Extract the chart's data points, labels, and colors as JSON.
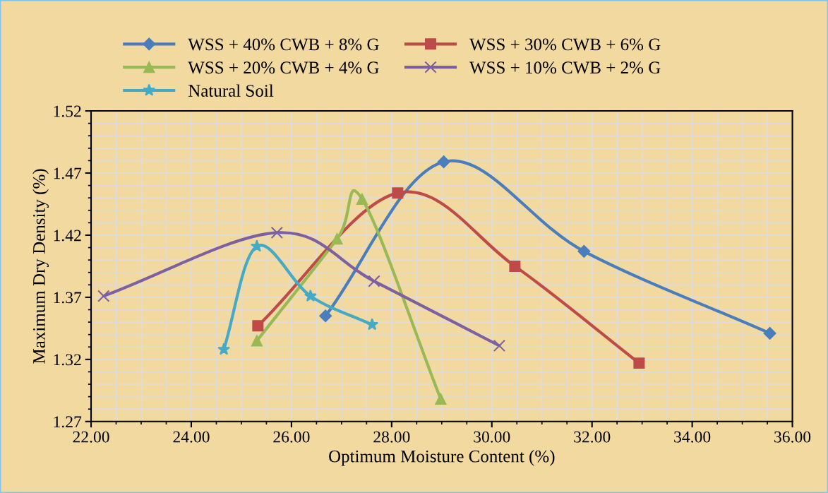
{
  "chart_data": {
    "type": "line",
    "xlabel": "Optimum Moisture Content (%)",
    "ylabel": "Maximum Dry Density (%)",
    "xlim": [
      22,
      36
    ],
    "ylim": [
      1.27,
      1.52
    ],
    "xticks": [
      {
        "value": 22,
        "label": "22.00"
      },
      {
        "value": 24,
        "label": "24.00"
      },
      {
        "value": 26,
        "label": "26.00"
      },
      {
        "value": 28,
        "label": "28.00"
      },
      {
        "value": 30,
        "label": "30.00"
      },
      {
        "value": 32,
        "label": "32.00"
      },
      {
        "value": 34,
        "label": "34.00"
      },
      {
        "value": 36,
        "label": "36.00"
      }
    ],
    "yticks": [
      1.27,
      1.32,
      1.37,
      1.42,
      1.47,
      1.52
    ],
    "grid": true,
    "legend": "top",
    "series": [
      {
        "name": "WSS + 40% CWB + 8% G",
        "color": "#4a7ebb",
        "marker": "diamond",
        "x": [
          26.68,
          29.04,
          31.84,
          35.55
        ],
        "values": [
          1.355,
          1.479,
          1.407,
          1.341
        ]
      },
      {
        "name": "WSS + 30% CWB + 6% G",
        "color": "#be4b48",
        "marker": "square",
        "x": [
          25.33,
          28.12,
          30.46,
          32.94
        ],
        "values": [
          1.347,
          1.454,
          1.395,
          1.317
        ]
      },
      {
        "name": "WSS + 20% CWB + 4% G",
        "color": "#98b954",
        "marker": "triangle",
        "x": [
          25.31,
          26.91,
          27.41,
          28.98
        ],
        "values": [
          1.335,
          1.417,
          1.449,
          1.288
        ]
      },
      {
        "name": "WSS + 10% CWB + 2% G",
        "color": "#7d60a0",
        "marker": "cross",
        "x": [
          22.25,
          25.71,
          27.65,
          30.15
        ],
        "values": [
          1.371,
          1.422,
          1.383,
          1.331
        ]
      },
      {
        "name": "Natural Soil",
        "color": "#46aac5",
        "marker": "star",
        "x": [
          24.65,
          25.31,
          26.38,
          27.61
        ],
        "values": [
          1.328,
          1.411,
          1.371,
          1.348
        ]
      }
    ]
  }
}
